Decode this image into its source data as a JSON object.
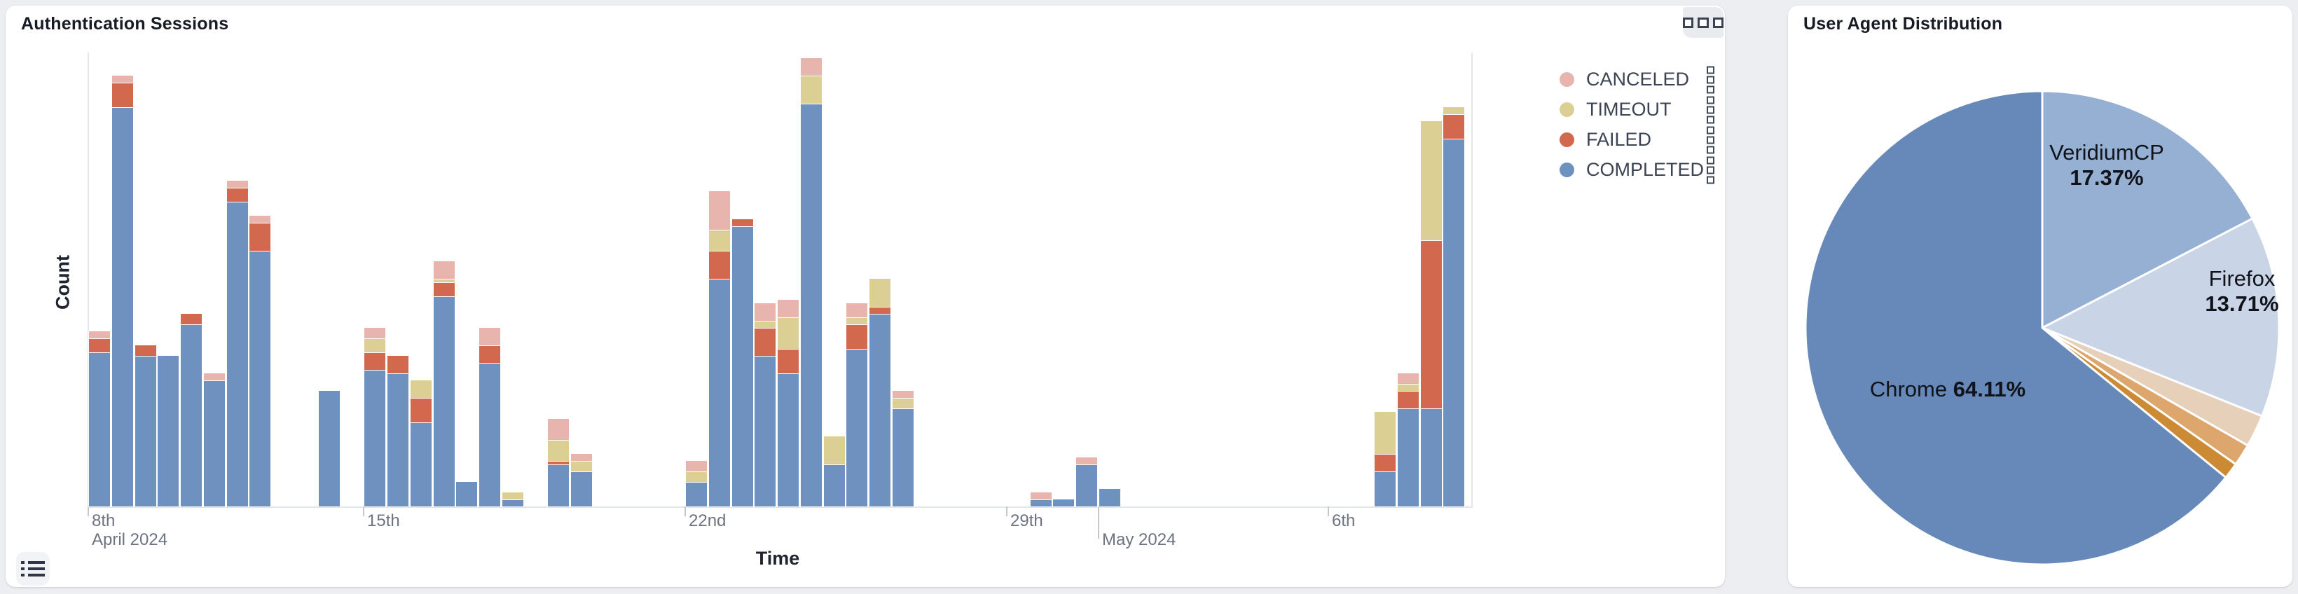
{
  "auth_panel": {
    "title": "Authentication Sessions",
    "x_axis_title": "Time",
    "y_axis_title": "Count",
    "legend": [
      {
        "label": "CANCELED",
        "color": "#e7b4ae",
        "key": "canceled"
      },
      {
        "label": "TIMEOUT",
        "color": "#dbcf93",
        "key": "timeout"
      },
      {
        "label": "FAILED",
        "color": "#d2694f",
        "key": "failed"
      },
      {
        "label": "COMPLETED",
        "color": "#6e91bf",
        "key": "completed"
      }
    ],
    "x_ticks": [
      {
        "slot": 0,
        "line1": "8th",
        "line2": "April 2024",
        "tall": false
      },
      {
        "slot": 12,
        "line1": "15th",
        "line2": "",
        "tall": false
      },
      {
        "slot": 26,
        "line1": "22nd",
        "line2": "",
        "tall": false
      },
      {
        "slot": 40,
        "line1": "29th",
        "line2": "",
        "tall": false
      },
      {
        "slot": 44,
        "line1": "",
        "line2": "May 2024",
        "tall": true
      },
      {
        "slot": 54,
        "line1": "6th",
        "line2": "",
        "tall": false
      }
    ]
  },
  "agent_panel": {
    "title": "User Agent Distribution"
  },
  "chart_data": [
    {
      "type": "bar",
      "stacked": true,
      "title": "Authentication Sessions",
      "xlabel": "Time",
      "ylabel": "Count",
      "x_axis_type": "time (April 8 2024 - May 8 2024, half-day slots)",
      "grid": false,
      "legend_position": "right",
      "series_order_bottom_to_top": [
        "COMPLETED",
        "FAILED",
        "TIMEOUT",
        "CANCELED"
      ],
      "note": "y axis has no numeric tick labels; values are estimated counts",
      "bars": [
        {
          "slot": 0,
          "completed": 44,
          "failed": 4,
          "timeout": 0,
          "canceled": 2
        },
        {
          "slot": 1,
          "completed": 114,
          "failed": 7,
          "timeout": 0,
          "canceled": 2
        },
        {
          "slot": 2,
          "completed": 43,
          "failed": 3,
          "timeout": 0,
          "canceled": 0
        },
        {
          "slot": 3,
          "completed": 43,
          "failed": 0,
          "timeout": 0,
          "canceled": 0
        },
        {
          "slot": 4,
          "completed": 52,
          "failed": 3,
          "timeout": 0,
          "canceled": 0
        },
        {
          "slot": 5,
          "completed": 36,
          "failed": 0,
          "timeout": 0,
          "canceled": 2
        },
        {
          "slot": 6,
          "completed": 87,
          "failed": 4,
          "timeout": 0,
          "canceled": 2
        },
        {
          "slot": 7,
          "completed": 73,
          "failed": 8,
          "timeout": 0,
          "canceled": 2
        },
        {
          "slot": 10,
          "completed": 33,
          "failed": 0,
          "timeout": 0,
          "canceled": 0
        },
        {
          "slot": 12,
          "completed": 39,
          "failed": 5,
          "timeout": 4,
          "canceled": 3
        },
        {
          "slot": 13,
          "completed": 38,
          "failed": 5,
          "timeout": 0,
          "canceled": 0
        },
        {
          "slot": 14,
          "completed": 24,
          "failed": 7,
          "timeout": 5,
          "canceled": 0
        },
        {
          "slot": 15,
          "completed": 60,
          "failed": 4,
          "timeout": 1,
          "canceled": 5
        },
        {
          "slot": 16,
          "completed": 7,
          "failed": 0,
          "timeout": 0,
          "canceled": 0
        },
        {
          "slot": 17,
          "completed": 41,
          "failed": 5,
          "timeout": 0,
          "canceled": 5
        },
        {
          "slot": 18,
          "completed": 2,
          "failed": 0,
          "timeout": 2,
          "canceled": 0
        },
        {
          "slot": 20,
          "completed": 12,
          "failed": 1,
          "timeout": 6,
          "canceled": 6
        },
        {
          "slot": 21,
          "completed": 10,
          "failed": 0,
          "timeout": 3,
          "canceled": 2
        },
        {
          "slot": 26,
          "completed": 7,
          "failed": 0,
          "timeout": 3,
          "canceled": 3
        },
        {
          "slot": 27,
          "completed": 65,
          "failed": 8,
          "timeout": 6,
          "canceled": 11
        },
        {
          "slot": 28,
          "completed": 80,
          "failed": 2,
          "timeout": 0,
          "canceled": 0
        },
        {
          "slot": 29,
          "completed": 43,
          "failed": 8,
          "timeout": 2,
          "canceled": 5
        },
        {
          "slot": 30,
          "completed": 38,
          "failed": 7,
          "timeout": 9,
          "canceled": 5
        },
        {
          "slot": 31,
          "completed": 115,
          "failed": 0,
          "timeout": 8,
          "canceled": 5
        },
        {
          "slot": 32,
          "completed": 12,
          "failed": 0,
          "timeout": 8,
          "canceled": 0
        },
        {
          "slot": 33,
          "completed": 45,
          "failed": 7,
          "timeout": 2,
          "canceled": 4
        },
        {
          "slot": 34,
          "completed": 55,
          "failed": 2,
          "timeout": 8,
          "canceled": 0
        },
        {
          "slot": 35,
          "completed": 28,
          "failed": 0,
          "timeout": 3,
          "canceled": 2
        },
        {
          "slot": 41,
          "completed": 2,
          "failed": 0,
          "timeout": 0,
          "canceled": 2
        },
        {
          "slot": 42,
          "completed": 2,
          "failed": 0,
          "timeout": 0,
          "canceled": 0
        },
        {
          "slot": 43,
          "completed": 12,
          "failed": 0,
          "timeout": 0,
          "canceled": 2
        },
        {
          "slot": 44,
          "completed": 5,
          "failed": 0,
          "timeout": 0,
          "canceled": 0
        },
        {
          "slot": 56,
          "completed": 10,
          "failed": 5,
          "timeout": 12,
          "canceled": 0
        },
        {
          "slot": 57,
          "completed": 28,
          "failed": 5,
          "timeout": 2,
          "canceled": 3
        },
        {
          "slot": 58,
          "completed": 28,
          "failed": 48,
          "timeout": 34,
          "canceled": 0
        },
        {
          "slot": 59,
          "completed": 105,
          "failed": 7,
          "timeout": 2,
          "canceled": 0
        }
      ]
    },
    {
      "type": "pie",
      "title": "User Agent Distribution",
      "start_angle": "12 o'clock, clockwise",
      "slices": [
        {
          "name": "VeridiumCP",
          "value": 17.37,
          "color": "#96b0d4"
        },
        {
          "name": "Firefox",
          "value": 13.71,
          "color": "#c9d5e6"
        },
        {
          "name": "",
          "value": 2.2,
          "color": "#e6d0ba"
        },
        {
          "name": "",
          "value": 1.5,
          "color": "#dca66c"
        },
        {
          "name": "",
          "value": 1.11,
          "color": "#cd8a35"
        },
        {
          "name": "Chrome",
          "value": 64.11,
          "color": "#6789ba"
        }
      ],
      "labels": [
        {
          "name": "VeridiumCP",
          "pct": "17.37%",
          "x": 455,
          "y": 228,
          "stacked": true
        },
        {
          "name": "Firefox",
          "pct": "13.71%",
          "x": 648,
          "y": 408,
          "stacked": true
        },
        {
          "name": "Chrome",
          "pct": "64.11%",
          "x": 228,
          "y": 548,
          "stacked": false
        }
      ]
    }
  ]
}
